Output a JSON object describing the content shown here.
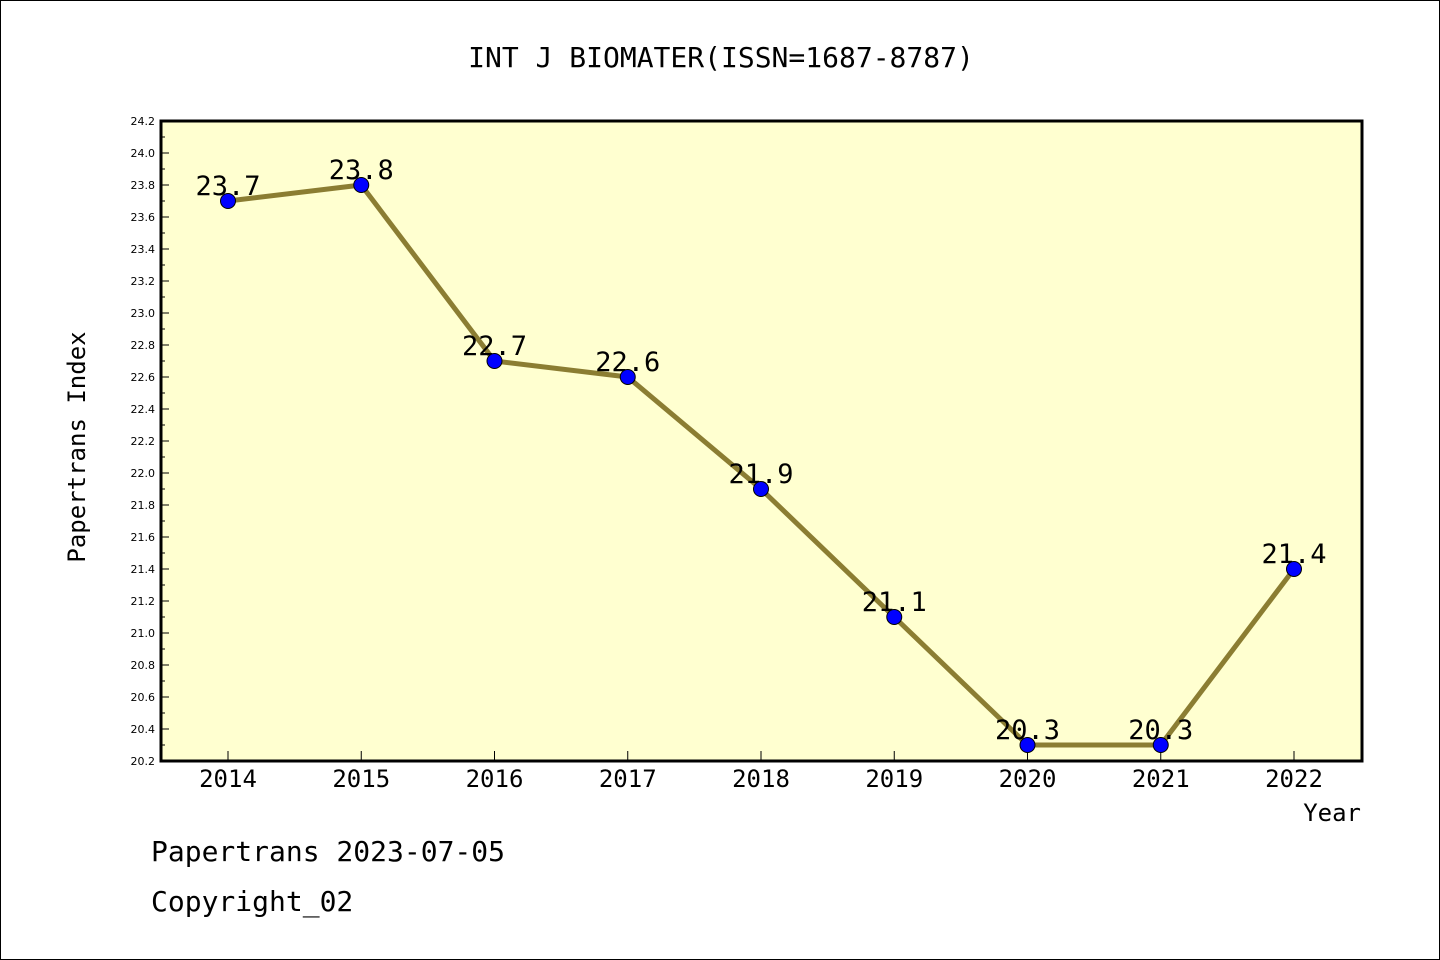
{
  "chart_data": {
    "type": "line",
    "title": "INT J BIOMATER(ISSN=1687-8787)",
    "xlabel": "Year",
    "ylabel": "Papertrans Index",
    "categories": [
      "2014",
      "2015",
      "2016",
      "2017",
      "2018",
      "2019",
      "2020",
      "2021",
      "2022"
    ],
    "series": [
      {
        "values": [
          23.7,
          23.8,
          22.7,
          22.6,
          21.9,
          21.1,
          20.3,
          20.3,
          21.4
        ],
        "labels": [
          "23.7",
          "23.8",
          "22.7",
          "22.6",
          "21.9",
          "21.1",
          "20.3",
          "20.3",
          "21.4"
        ]
      }
    ],
    "ylim": [
      20.2,
      24.2
    ],
    "yticks": [
      "20.2",
      "20.4",
      "20.6",
      "20.8",
      "21.0",
      "21.2",
      "21.4",
      "21.6",
      "21.8",
      "22.0",
      "22.2",
      "22.4",
      "22.6",
      "22.8",
      "23.0",
      "23.2",
      "23.4",
      "23.6",
      "23.8",
      "24.0",
      "24.2"
    ],
    "grid": false,
    "legend": "none",
    "colors": {
      "plot_background": "#ffffd0",
      "line": "#8b7d32",
      "marker": "#0000ff",
      "axis": "#000000"
    }
  },
  "footer": {
    "source": "Papertrans 2023-07-05",
    "copyright": "Copyright_02"
  }
}
